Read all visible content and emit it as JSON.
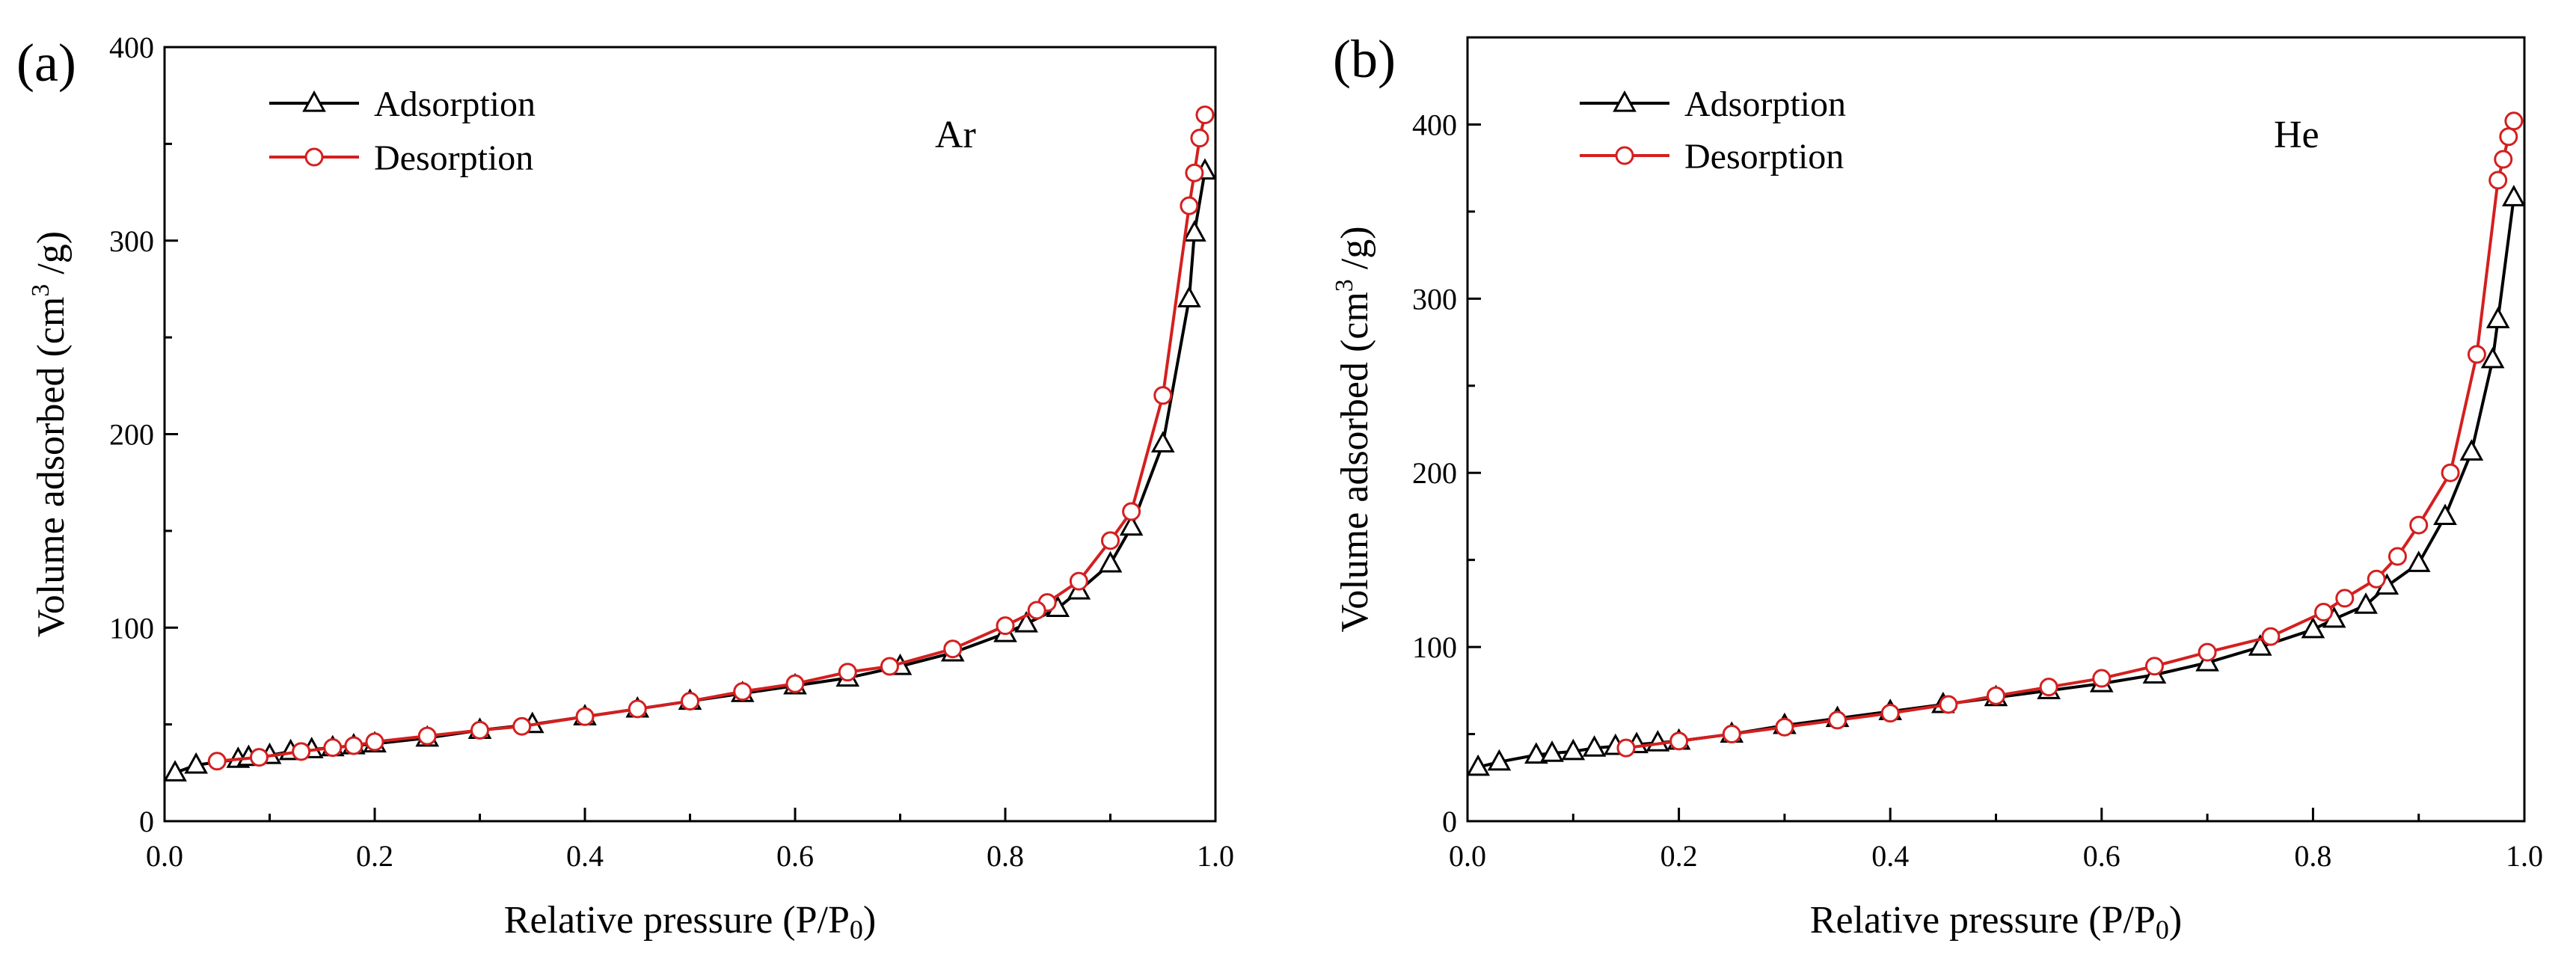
{
  "colors": {
    "adsorption": "#000000",
    "desorption": "#d41f1f",
    "axis": "#000000",
    "background": "#ffffff"
  },
  "chart_data": [
    {
      "type": "line",
      "panel_label": "(a)",
      "annotation": "Ar",
      "xlabel": "Relative pressure (P/P",
      "xlabel_sub": "0",
      "xlabel_end": ")",
      "ylabel": "Volume adsorbed (cm",
      "ylabel_sup": "3",
      "ylabel_end": " /g)",
      "xlim": [
        0,
        1
      ],
      "ylim": [
        0,
        400
      ],
      "xticks": [
        0.0,
        0.2,
        0.4,
        0.6,
        0.8,
        1.0
      ],
      "xtick_labels": [
        "0.0",
        "0.2",
        "0.4",
        "0.6",
        "0.8",
        "1.0"
      ],
      "yticks": [
        0,
        100,
        200,
        300,
        400
      ],
      "ytick_labels": [
        "0",
        "100",
        "200",
        "300",
        "400"
      ],
      "legend_position": "top-left",
      "series": [
        {
          "name": "Adsorption",
          "marker": "triangle",
          "x": [
            0.01,
            0.03,
            0.07,
            0.08,
            0.1,
            0.12,
            0.14,
            0.16,
            0.18,
            0.2,
            0.25,
            0.3,
            0.35,
            0.4,
            0.45,
            0.5,
            0.55,
            0.6,
            0.65,
            0.7,
            0.75,
            0.8,
            0.82,
            0.85,
            0.87,
            0.9,
            0.92,
            0.95,
            0.975,
            0.98,
            0.99
          ],
          "values": [
            25,
            29,
            32,
            33,
            34,
            36,
            37,
            38,
            39,
            40,
            43,
            47,
            50,
            54,
            58,
            62,
            66,
            70,
            74,
            80,
            87,
            97,
            102,
            110,
            119,
            133,
            152,
            195,
            270,
            304,
            336
          ]
        },
        {
          "name": "Desorption",
          "marker": "circle",
          "x": [
            0.99,
            0.985,
            0.98,
            0.975,
            0.95,
            0.92,
            0.9,
            0.87,
            0.84,
            0.83,
            0.8,
            0.75,
            0.69,
            0.65,
            0.6,
            0.55,
            0.5,
            0.45,
            0.4,
            0.34,
            0.3,
            0.25,
            0.2,
            0.18,
            0.16,
            0.13,
            0.09,
            0.05
          ],
          "values": [
            365,
            353,
            335,
            318,
            220,
            160,
            145,
            124,
            113,
            109,
            101,
            89,
            80,
            77,
            71,
            67,
            62,
            58,
            54,
            49,
            47,
            44,
            41,
            39,
            38,
            36,
            33,
            31
          ]
        }
      ]
    },
    {
      "type": "line",
      "panel_label": "(b)",
      "annotation": "He",
      "xlabel": "Relative pressure (P/P",
      "xlabel_sub": "0",
      "xlabel_end": ")",
      "ylabel": "Volume adsorbed (cm",
      "ylabel_sup": "3",
      "ylabel_end": " /g)",
      "xlim": [
        0,
        1
      ],
      "ylim": [
        0,
        450
      ],
      "xticks": [
        0.0,
        0.2,
        0.4,
        0.6,
        0.8,
        1.0
      ],
      "xtick_labels": [
        "0.0",
        "0.2",
        "0.4",
        "0.6",
        "0.8",
        "1.0"
      ],
      "yticks": [
        0,
        100,
        200,
        300,
        400
      ],
      "ytick_labels": [
        "0",
        "100",
        "200",
        "300",
        "400"
      ],
      "legend_position": "top-left",
      "series": [
        {
          "name": "Adsorption",
          "marker": "triangle",
          "x": [
            0.01,
            0.03,
            0.065,
            0.08,
            0.1,
            0.12,
            0.14,
            0.16,
            0.18,
            0.2,
            0.25,
            0.3,
            0.35,
            0.4,
            0.45,
            0.5,
            0.55,
            0.6,
            0.65,
            0.7,
            0.75,
            0.8,
            0.82,
            0.85,
            0.87,
            0.9,
            0.925,
            0.95,
            0.97,
            0.975,
            0.99
          ],
          "values": [
            31,
            34,
            38,
            39,
            40,
            42,
            43,
            44,
            45,
            46,
            50,
            55,
            59,
            63,
            67,
            71,
            75,
            79,
            84,
            91,
            100,
            110,
            116,
            124,
            135,
            148,
            175,
            212,
            265,
            288,
            358
          ]
        },
        {
          "name": "Desorption",
          "marker": "circle",
          "x": [
            0.99,
            0.985,
            0.98,
            0.975,
            0.955,
            0.93,
            0.9,
            0.88,
            0.86,
            0.83,
            0.81,
            0.76,
            0.7,
            0.65,
            0.6,
            0.55,
            0.5,
            0.455,
            0.4,
            0.35,
            0.3,
            0.25,
            0.2,
            0.15
          ],
          "values": [
            402,
            393,
            380,
            368,
            268,
            200,
            170,
            152,
            139,
            128,
            120,
            106,
            97,
            89,
            82,
            77,
            72,
            67,
            62,
            58,
            54,
            50,
            46,
            42
          ]
        }
      ]
    }
  ]
}
